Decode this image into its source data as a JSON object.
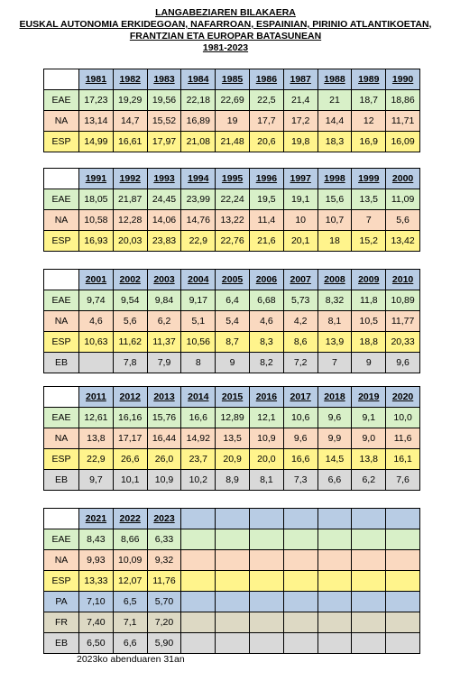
{
  "title": {
    "line1": "LANGABEZIAREN BILAKAERA",
    "line2": "EUSKAL AUTONOMIA ERKIDEGOAN, NAFARROAN, ESPAINIAN, PIRINIO ATLANTIKOETAN,",
    "line3": "FRANTZIAN ETA EUROPAR BATASUNEAN",
    "line4": "1981-2023"
  },
  "tables": [
    {
      "years": [
        "1981",
        "1982",
        "1983",
        "1984",
        "1985",
        "1986",
        "1987",
        "1988",
        "1989",
        "1990"
      ],
      "rows": [
        {
          "label": "EAE",
          "values": [
            "17,23",
            "19,29",
            "19,56",
            "22,18",
            "22,69",
            "22,5",
            "21,4",
            "21",
            "18,7",
            "18,86"
          ]
        },
        {
          "label": "NA",
          "values": [
            "13,14",
            "14,7",
            "15,52",
            "16,89",
            "19",
            "17,7",
            "17,2",
            "14,4",
            "12",
            "11,71"
          ]
        },
        {
          "label": "ESP",
          "values": [
            "14,99",
            "16,61",
            "17,97",
            "21,08",
            "21,48",
            "20,6",
            "19,8",
            "18,3",
            "16,9",
            "16,09"
          ]
        }
      ]
    },
    {
      "years": [
        "1991",
        "1992",
        "1993",
        "1994",
        "1995",
        "1996",
        "1997",
        "1998",
        "1999",
        "2000"
      ],
      "rows": [
        {
          "label": "EAE",
          "values": [
            "18,05",
            "21,87",
            "24,45",
            "23,99",
            "22,24",
            "19,5",
            "19,1",
            "15,6",
            "13,5",
            "11,09"
          ]
        },
        {
          "label": "NA",
          "values": [
            "10,58",
            "12,28",
            "14,06",
            "14,76",
            "13,22",
            "11,4",
            "10",
            "10,7",
            "7",
            "5,6"
          ]
        },
        {
          "label": "ESP",
          "values": [
            "16,93",
            "20,03",
            "23,83",
            "22,9",
            "22,76",
            "21,6",
            "20,1",
            "18",
            "15,2",
            "13,42"
          ]
        }
      ]
    },
    {
      "years": [
        "2001",
        "2002",
        "2003",
        "2004",
        "2005",
        "2006",
        "2007",
        "2008",
        "2009",
        "2010"
      ],
      "rows": [
        {
          "label": "EAE",
          "values": [
            "9,74",
            "9,54",
            "9,84",
            "9,17",
            "6,4",
            "6,68",
            "5,73",
            "8,32",
            "11,8",
            "10,89"
          ]
        },
        {
          "label": "NA",
          "values": [
            "4,6",
            "5,6",
            "6,2",
            "5,1",
            "5,4",
            "4,6",
            "4,2",
            "8,1",
            "10,5",
            "11,77"
          ]
        },
        {
          "label": "ESP",
          "values": [
            "10,63",
            "11,62",
            "11,37",
            "10,56",
            "8,7",
            "8,3",
            "8,6",
            "13,9",
            "18,8",
            "20,33"
          ]
        },
        {
          "label": "EB",
          "values": [
            "",
            "7,8",
            "7,9",
            "8",
            "9",
            "8,2",
            "7,2",
            "7",
            "9",
            "9,6"
          ]
        }
      ]
    },
    {
      "years": [
        "2011",
        "2012",
        "2013",
        "2014",
        "2015",
        "2016",
        "2017",
        "2018",
        "2019",
        "2020"
      ],
      "rows": [
        {
          "label": "EAE",
          "values": [
            "12,61",
            "16,16",
            "15,76",
            "16,6",
            "12,89",
            "12,1",
            "10,6",
            "9,6",
            "9,1",
            "10,0"
          ]
        },
        {
          "label": "NA",
          "values": [
            "13,8",
            "17,17",
            "16,44",
            "14,92",
            "13,5",
            "10,9",
            "9,6",
            "9,9",
            "9,0",
            "11,6"
          ]
        },
        {
          "label": "ESP",
          "values": [
            "22,9",
            "26,6",
            "26,0",
            "23,7",
            "20,9",
            "20,0",
            "16,6",
            "14,5",
            "13,8",
            "16,1"
          ]
        },
        {
          "label": "EB",
          "values": [
            "9,7",
            "10,1",
            "10,9",
            "10,2",
            "8,9",
            "8,1",
            "7,3",
            "6,6",
            "6,2",
            "7,6"
          ]
        }
      ]
    },
    {
      "years": [
        "2021",
        "2022",
        "2023",
        "",
        "",
        "",
        "",
        "",
        "",
        ""
      ],
      "rows": [
        {
          "label": "EAE",
          "values": [
            "8,43",
            "8,66",
            "6,33",
            "",
            "",
            "",
            "",
            "",
            "",
            ""
          ]
        },
        {
          "label": "NA",
          "values": [
            "9,93",
            "10,09",
            "9,32",
            "",
            "",
            "",
            "",
            "",
            "",
            ""
          ]
        },
        {
          "label": "ESP",
          "values": [
            "13,33",
            "12,07",
            "11,76",
            "",
            "",
            "",
            "",
            "",
            "",
            ""
          ]
        },
        {
          "label": "PA",
          "values": [
            "7,10",
            "6,5",
            "5,70",
            "",
            "",
            "",
            "",
            "",
            "",
            ""
          ]
        },
        {
          "label": "FR",
          "values": [
            "7,40",
            "7,1",
            "7,20",
            "",
            "",
            "",
            "",
            "",
            "",
            ""
          ]
        },
        {
          "label": "EB",
          "values": [
            "6,50",
            "6,6",
            "5,90",
            "",
            "",
            "",
            "",
            "",
            "",
            ""
          ]
        }
      ]
    }
  ],
  "footer": "2023ko abenduaren 31an"
}
